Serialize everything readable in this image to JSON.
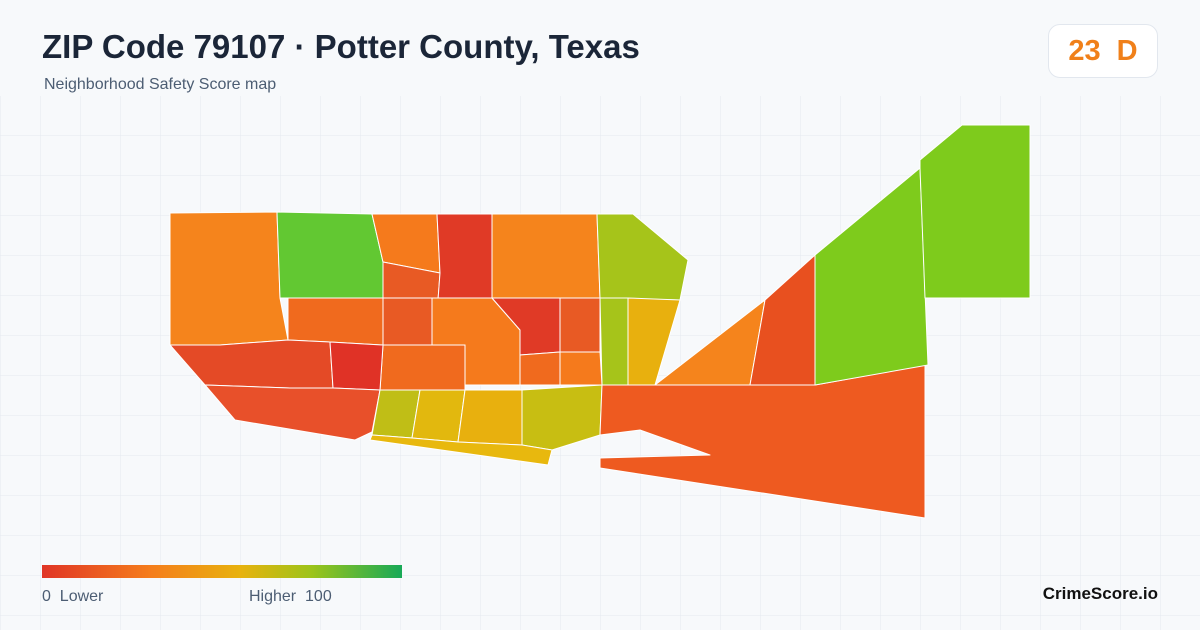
{
  "header": {
    "title": "ZIP Code 79107 · Potter County, Texas",
    "subtitle": "Neighborhood Safety Score map"
  },
  "score": {
    "value": 23,
    "grade": "D"
  },
  "legend": {
    "min": 0,
    "min_label": "Lower",
    "max_label": "Higher",
    "max": 100
  },
  "brand": "CrimeScore.io"
}
